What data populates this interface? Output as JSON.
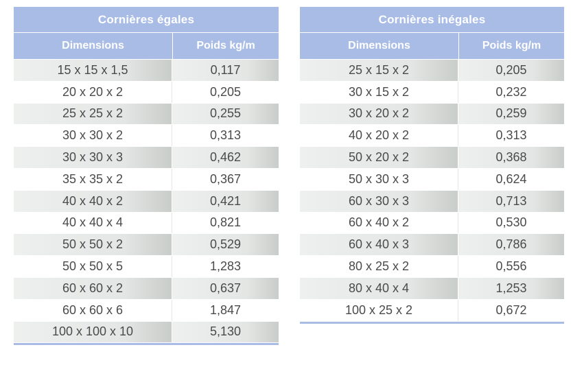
{
  "tables": [
    {
      "title": "Cornières égales",
      "headers": [
        "Dimensions",
        "Poids kg/m"
      ],
      "rows": [
        [
          "15 x 15 x 1,5",
          "0,117"
        ],
        [
          "20 x 20 x 2",
          "0,205"
        ],
        [
          "25 x 25 x 2",
          "0,255"
        ],
        [
          "30 x 30 x 2",
          "0,313"
        ],
        [
          "30 x 30 x 3",
          "0,462"
        ],
        [
          "35 x 35 x 2",
          "0,367"
        ],
        [
          "40 x 40 x 2",
          "0,421"
        ],
        [
          "40 x 40 x 4",
          "0,821"
        ],
        [
          "50 x 50 x 2",
          "0,529"
        ],
        [
          "50 x 50 x 5",
          "1,283"
        ],
        [
          "60 x 60 x 2",
          "0,637"
        ],
        [
          "60 x 60 x 6",
          "1,847"
        ],
        [
          "100 x 100 x 10",
          "5,130"
        ]
      ]
    },
    {
      "title": "Cornières inégales",
      "headers": [
        "Dimensions",
        "Poids kg/m"
      ],
      "rows": [
        [
          "25 x 15 x 2",
          "0,205"
        ],
        [
          "30 x 15 x 2",
          "0,232"
        ],
        [
          "30 x 20 x 2",
          "0,259"
        ],
        [
          "40 x 20 x 2",
          "0,313"
        ],
        [
          "50 x 20 x 2",
          "0,368"
        ],
        [
          "50 x 30 x 3",
          "0,624"
        ],
        [
          "60 x 30 x 3",
          "0,713"
        ],
        [
          "60 x 40 x 2",
          "0,530"
        ],
        [
          "60 x 40 x 3",
          "0,786"
        ],
        [
          "80 x 25 x 2",
          "0,556"
        ],
        [
          "80 x 40 x 4",
          "1,253"
        ],
        [
          "100 x 25 x 2",
          "0,672"
        ]
      ]
    }
  ],
  "colors": {
    "header_bg": "#a9bce6",
    "header_text": "#ffffff",
    "row_shade": "#e3e6e4",
    "cell_text": "#4a4a4a"
  }
}
